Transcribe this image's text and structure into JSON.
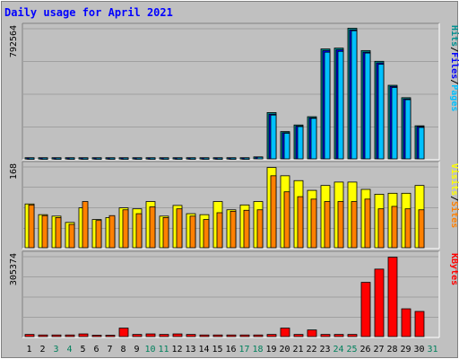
{
  "title": "Daily usage for April 2021",
  "chart_data": [
    {
      "type": "bar",
      "panel": "hits-files-pages",
      "y_max_label": "792564",
      "ylim": [
        0,
        792564
      ],
      "x": [
        "1",
        "2",
        "3",
        "4",
        "5",
        "6",
        "7",
        "8",
        "9",
        "10",
        "11",
        "12",
        "13",
        "14",
        "15",
        "16",
        "17",
        "18",
        "19",
        "20",
        "21",
        "22",
        "23",
        "24",
        "25",
        "26",
        "27",
        "28",
        "29",
        "30",
        "31"
      ],
      "legend": [
        {
          "text": "Pages",
          "color": "#00C0FF"
        },
        {
          "text": "/",
          "color": "#000000"
        },
        {
          "text": "Files",
          "color": "#0000FF"
        },
        {
          "text": "/",
          "color": "#000000"
        },
        {
          "text": "Hits",
          "color": "#009090"
        }
      ],
      "series": [
        {
          "name": "Hits",
          "color": "#009090",
          "values": [
            7000,
            7000,
            7000,
            7000,
            7000,
            7000,
            7000,
            7000,
            7000,
            7000,
            7000,
            7000,
            7000,
            7000,
            7000,
            7000,
            7000,
            12000,
            280000,
            165000,
            205000,
            255000,
            665000,
            670000,
            790000,
            655000,
            590000,
            445000,
            370000,
            200000,
            0
          ]
        },
        {
          "name": "Files",
          "color": "#0000FF",
          "values": [
            6000,
            6000,
            6000,
            6000,
            6000,
            6000,
            6000,
            6000,
            6000,
            6000,
            6000,
            6000,
            6000,
            6000,
            6000,
            6000,
            6000,
            11000,
            270000,
            158000,
            198000,
            248000,
            655000,
            660000,
            780000,
            645000,
            580000,
            438000,
            362000,
            195000,
            0
          ]
        },
        {
          "name": "Pages",
          "color": "#00C0FF",
          "values": [
            5000,
            5000,
            5000,
            5000,
            5000,
            5000,
            5000,
            5000,
            5000,
            5000,
            5000,
            5000,
            5000,
            5000,
            5000,
            5000,
            5000,
            10000,
            265000,
            155000,
            195000,
            245000,
            645000,
            650000,
            775000,
            640000,
            572000,
            432000,
            358000,
            190000,
            0
          ]
        }
      ]
    },
    {
      "type": "bar",
      "panel": "visits-sites",
      "y_max_label": "168",
      "ylim": [
        0,
        168
      ],
      "x": [
        "1",
        "2",
        "3",
        "4",
        "5",
        "6",
        "7",
        "8",
        "9",
        "10",
        "11",
        "12",
        "13",
        "14",
        "15",
        "16",
        "17",
        "18",
        "19",
        "20",
        "21",
        "22",
        "23",
        "24",
        "25",
        "26",
        "27",
        "28",
        "29",
        "30",
        "31"
      ],
      "legend": [
        {
          "text": "Sites",
          "color": "#FF8000"
        },
        {
          "text": "/",
          "color": "#000000"
        },
        {
          "text": "Visits",
          "color": "#FFFF00"
        }
      ],
      "series": [
        {
          "name": "Visits",
          "color": "#FFFF00",
          "values": [
            90,
            68,
            65,
            52,
            82,
            58,
            62,
            82,
            80,
            95,
            65,
            87,
            70,
            68,
            95,
            78,
            88,
            95,
            165,
            148,
            138,
            118,
            128,
            135,
            135,
            120,
            110,
            112,
            112,
            128,
            0
          ]
        },
        {
          "name": "Sites",
          "color": "#FF8000",
          "values": [
            88,
            66,
            62,
            48,
            95,
            56,
            66,
            78,
            70,
            84,
            62,
            80,
            65,
            58,
            72,
            75,
            77,
            78,
            148,
            115,
            105,
            100,
            95,
            95,
            95,
            100,
            80,
            85,
            80,
            78,
            0
          ]
        }
      ]
    },
    {
      "type": "bar",
      "panel": "kbytes",
      "y_max_label": "305374",
      "ylim": [
        0,
        305374
      ],
      "x": [
        "1",
        "2",
        "3",
        "4",
        "5",
        "6",
        "7",
        "8",
        "9",
        "10",
        "11",
        "12",
        "13",
        "14",
        "15",
        "16",
        "17",
        "18",
        "19",
        "20",
        "21",
        "22",
        "23",
        "24",
        "25",
        "26",
        "27",
        "28",
        "29",
        "30",
        "31"
      ],
      "legend": [
        {
          "text": "KBytes",
          "color": "#FF0000"
        }
      ],
      "series": [
        {
          "name": "KBytes",
          "color": "#FF0000",
          "values": [
            8000,
            6000,
            6000,
            6000,
            10000,
            5000,
            5000,
            32000,
            8000,
            10000,
            8000,
            10000,
            8000,
            6000,
            6000,
            6000,
            6000,
            6000,
            8000,
            32000,
            8000,
            25000,
            8000,
            8000,
            8000,
            205000,
            255000,
            300000,
            105000,
            95000,
            0
          ]
        }
      ]
    }
  ],
  "weekend_days": [
    "3",
    "4",
    "10",
    "11",
    "17",
    "18",
    "24",
    "25",
    "31"
  ],
  "colors": {
    "weekday_label": "#000000",
    "weekend_label": "#00805C"
  }
}
